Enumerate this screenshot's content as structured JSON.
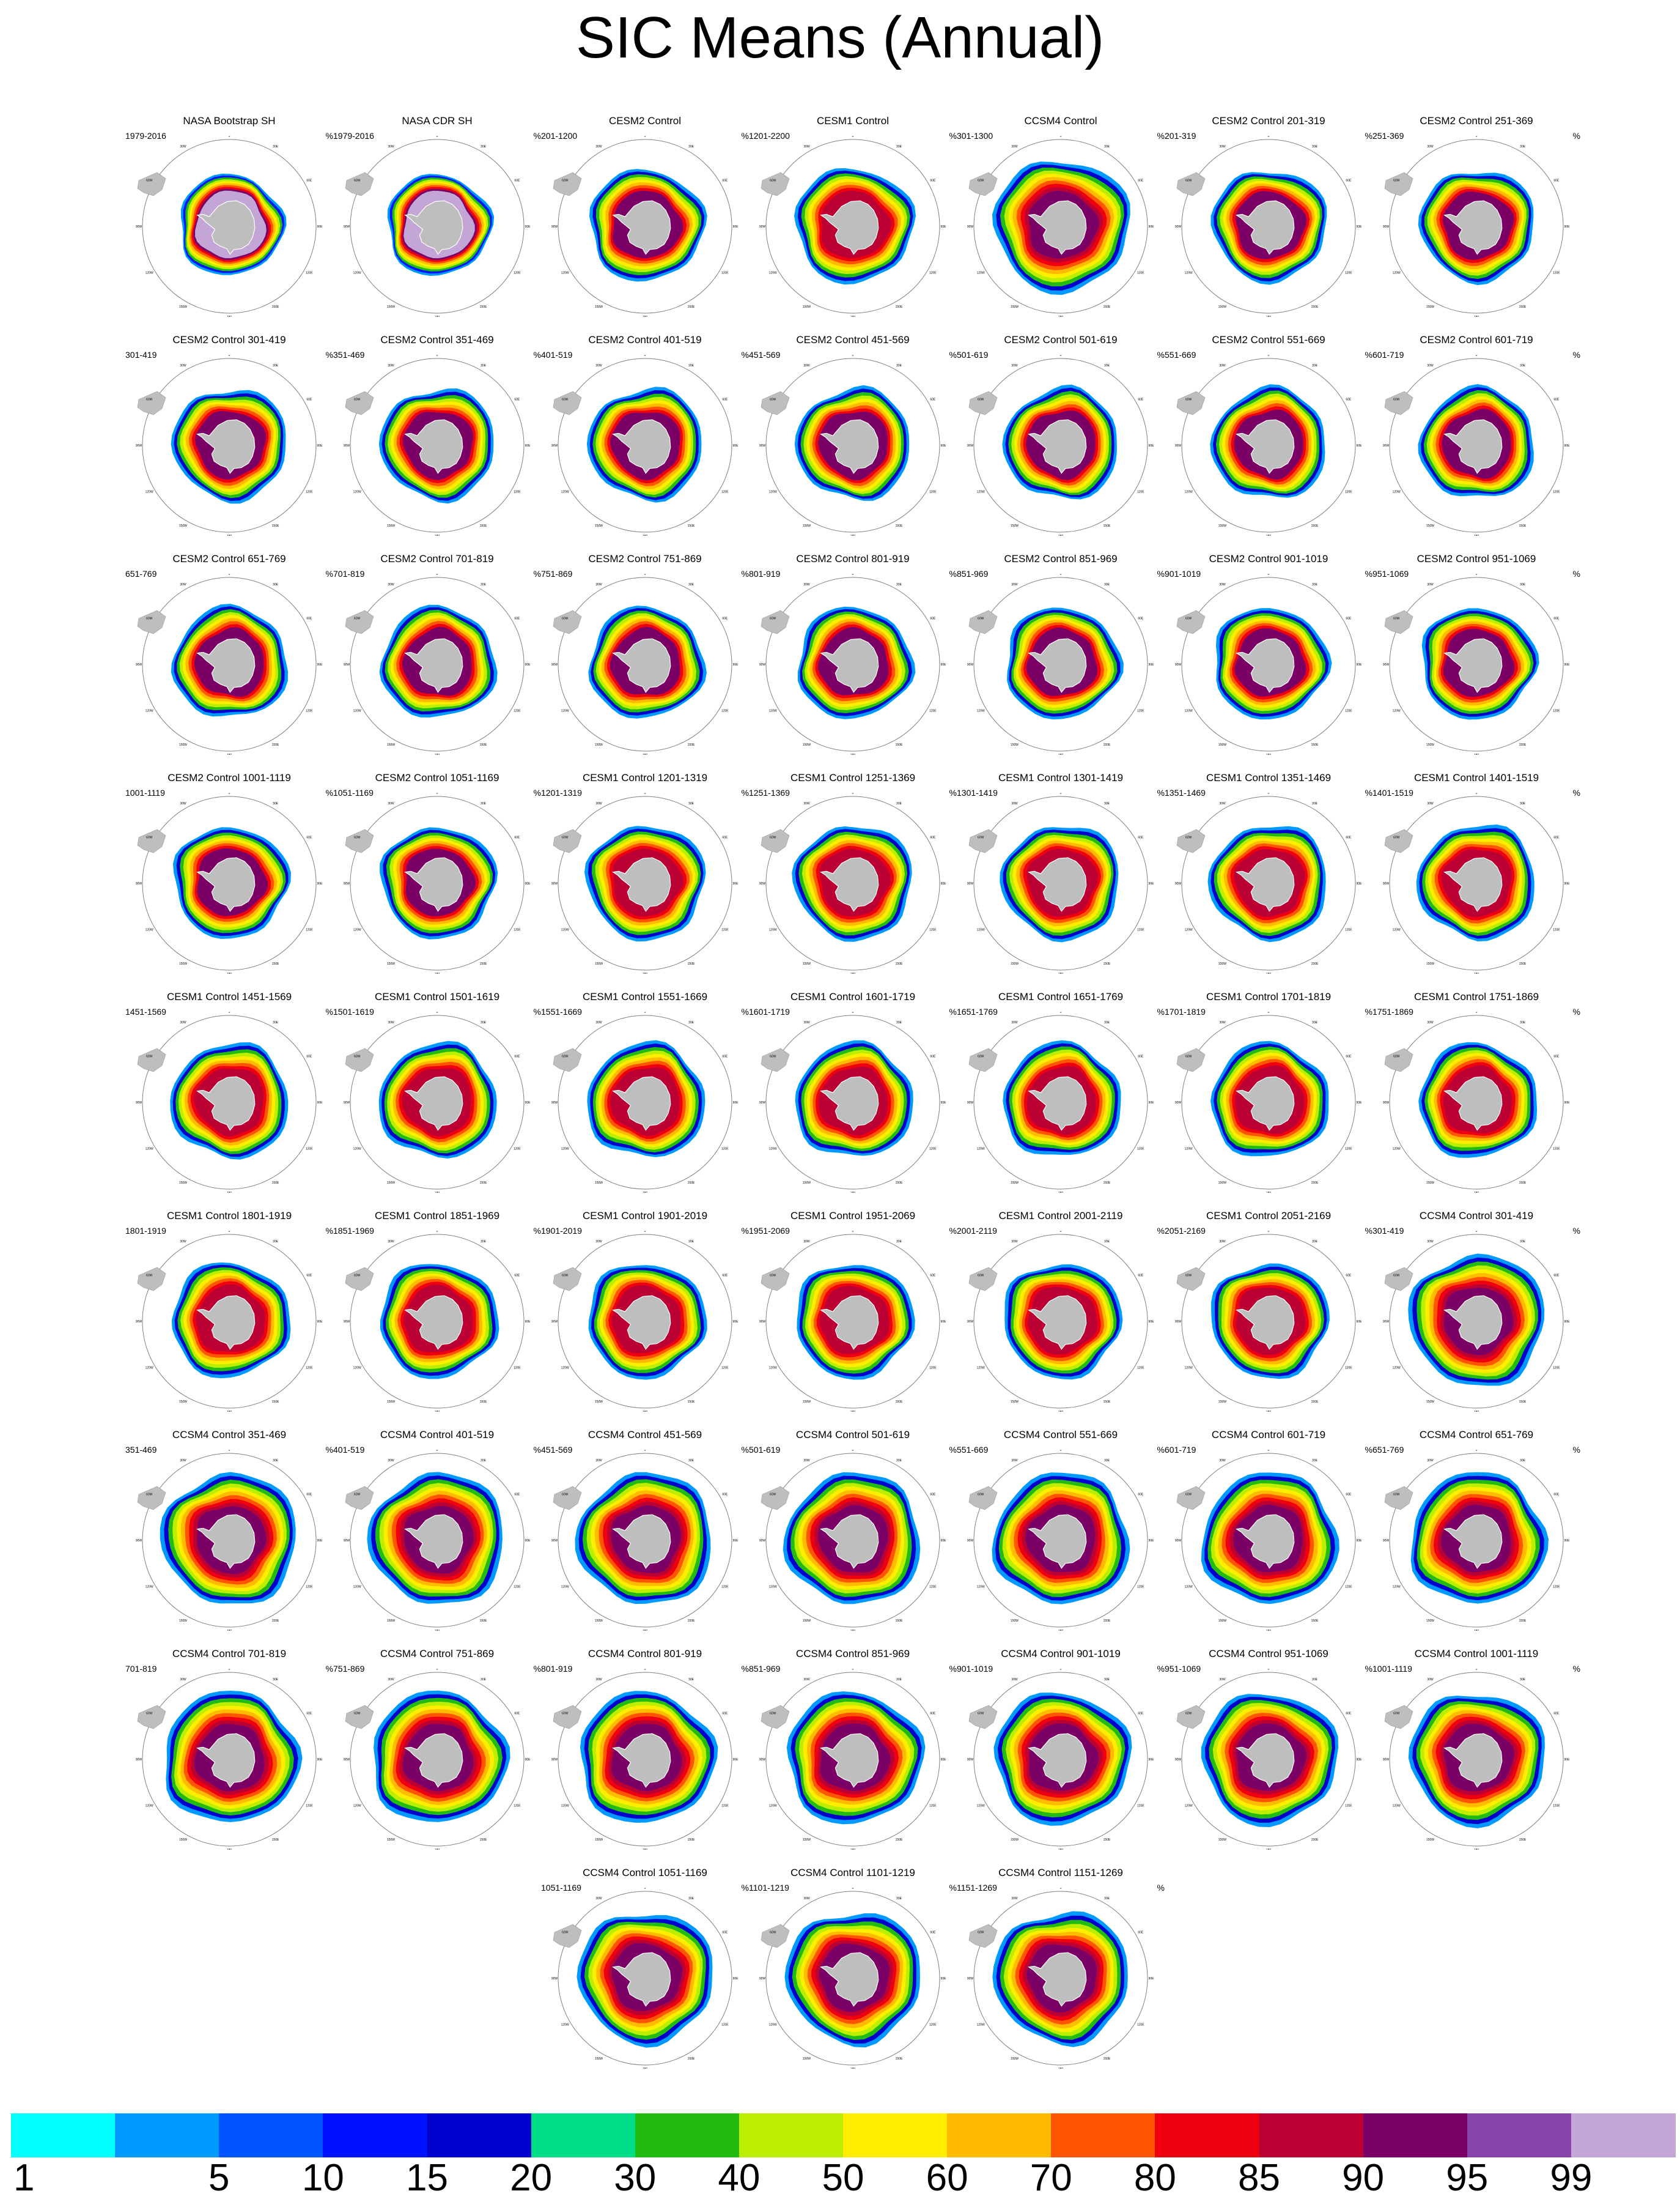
{
  "title": "SIC Means (Annual)",
  "units": "%",
  "map": {
    "projection": "south-polar-stereographic",
    "longitude_labels": [
      "0",
      "30E",
      "60E",
      "90E",
      "120E",
      "150E",
      "180",
      "150W",
      "120W",
      "90W",
      "60W",
      "30W"
    ],
    "colors": {
      "land": "#bebebe",
      "coastline": "#ffffff",
      "frame": "#808080"
    }
  },
  "panels": [
    {
      "title": "NASA Bootstrap SH",
      "years": "1979-2016",
      "dataset": "obs"
    },
    {
      "title": "NASA CDR SH",
      "years": "1979-2016",
      "dataset": "obs"
    },
    {
      "title": "CESM2 Control",
      "years": "201-1200",
      "dataset": "cesm2"
    },
    {
      "title": "CESM1 Control",
      "years": "1201-2200",
      "dataset": "cesm1"
    },
    {
      "title": "CCSM4 Control",
      "years": "301-1300",
      "dataset": "ccsm4"
    },
    {
      "title": "CESM2 Control 201-319",
      "years": "201-319",
      "dataset": "cesm2"
    },
    {
      "title": "CESM2 Control 251-369",
      "years": "251-369",
      "dataset": "cesm2"
    },
    {
      "title": "CESM2 Control 301-419",
      "years": "301-419",
      "dataset": "cesm2"
    },
    {
      "title": "CESM2 Control 351-469",
      "years": "351-469",
      "dataset": "cesm2"
    },
    {
      "title": "CESM2 Control 401-519",
      "years": "401-519",
      "dataset": "cesm2"
    },
    {
      "title": "CESM2 Control 451-569",
      "years": "451-569",
      "dataset": "cesm2"
    },
    {
      "title": "CESM2 Control 501-619",
      "years": "501-619",
      "dataset": "cesm2"
    },
    {
      "title": "CESM2 Control 551-669",
      "years": "551-669",
      "dataset": "cesm2"
    },
    {
      "title": "CESM2 Control 601-719",
      "years": "601-719",
      "dataset": "cesm2"
    },
    {
      "title": "CESM2 Control 651-769",
      "years": "651-769",
      "dataset": "cesm2"
    },
    {
      "title": "CESM2 Control 701-819",
      "years": "701-819",
      "dataset": "cesm2"
    },
    {
      "title": "CESM2 Control 751-869",
      "years": "751-869",
      "dataset": "cesm2"
    },
    {
      "title": "CESM2 Control 801-919",
      "years": "801-919",
      "dataset": "cesm2"
    },
    {
      "title": "CESM2 Control 851-969",
      "years": "851-969",
      "dataset": "cesm2"
    },
    {
      "title": "CESM2 Control 901-1019",
      "years": "901-1019",
      "dataset": "cesm2"
    },
    {
      "title": "CESM2 Control 951-1069",
      "years": "951-1069",
      "dataset": "cesm2"
    },
    {
      "title": "CESM2 Control 1001-1119",
      "years": "1001-1119",
      "dataset": "cesm2"
    },
    {
      "title": "CESM2 Control 1051-1169",
      "years": "1051-1169",
      "dataset": "cesm2"
    },
    {
      "title": "CESM1 Control 1201-1319",
      "years": "1201-1319",
      "dataset": "cesm1"
    },
    {
      "title": "CESM1 Control 1251-1369",
      "years": "1251-1369",
      "dataset": "cesm1"
    },
    {
      "title": "CESM1 Control 1301-1419",
      "years": "1301-1419",
      "dataset": "cesm1"
    },
    {
      "title": "CESM1 Control 1351-1469",
      "years": "1351-1469",
      "dataset": "cesm1"
    },
    {
      "title": "CESM1 Control 1401-1519",
      "years": "1401-1519",
      "dataset": "cesm1"
    },
    {
      "title": "CESM1 Control 1451-1569",
      "years": "1451-1569",
      "dataset": "cesm1"
    },
    {
      "title": "CESM1 Control 1501-1619",
      "years": "1501-1619",
      "dataset": "cesm1"
    },
    {
      "title": "CESM1 Control 1551-1669",
      "years": "1551-1669",
      "dataset": "cesm1"
    },
    {
      "title": "CESM1 Control 1601-1719",
      "years": "1601-1719",
      "dataset": "cesm1"
    },
    {
      "title": "CESM1 Control 1651-1769",
      "years": "1651-1769",
      "dataset": "cesm1"
    },
    {
      "title": "CESM1 Control 1701-1819",
      "years": "1701-1819",
      "dataset": "cesm1"
    },
    {
      "title": "CESM1 Control 1751-1869",
      "years": "1751-1869",
      "dataset": "cesm1"
    },
    {
      "title": "CESM1 Control 1801-1919",
      "years": "1801-1919",
      "dataset": "cesm1"
    },
    {
      "title": "CESM1 Control 1851-1969",
      "years": "1851-1969",
      "dataset": "cesm1"
    },
    {
      "title": "CESM1 Control 1901-2019",
      "years": "1901-2019",
      "dataset": "cesm1"
    },
    {
      "title": "CESM1 Control 1951-2069",
      "years": "1951-2069",
      "dataset": "cesm1"
    },
    {
      "title": "CESM1 Control 2001-2119",
      "years": "2001-2119",
      "dataset": "cesm1"
    },
    {
      "title": "CESM1 Control 2051-2169",
      "years": "2051-2169",
      "dataset": "cesm1"
    },
    {
      "title": "CCSM4 Control 301-419",
      "years": "301-419",
      "dataset": "ccsm4"
    },
    {
      "title": "CCSM4 Control 351-469",
      "years": "351-469",
      "dataset": "ccsm4"
    },
    {
      "title": "CCSM4 Control 401-519",
      "years": "401-519",
      "dataset": "ccsm4"
    },
    {
      "title": "CCSM4 Control 451-569",
      "years": "451-569",
      "dataset": "ccsm4"
    },
    {
      "title": "CCSM4 Control 501-619",
      "years": "501-619",
      "dataset": "ccsm4"
    },
    {
      "title": "CCSM4 Control 551-669",
      "years": "551-669",
      "dataset": "ccsm4"
    },
    {
      "title": "CCSM4 Control 601-719",
      "years": "601-719",
      "dataset": "ccsm4"
    },
    {
      "title": "CCSM4 Control 651-769",
      "years": "651-769",
      "dataset": "ccsm4"
    },
    {
      "title": "CCSM4 Control 701-819",
      "years": "701-819",
      "dataset": "ccsm4"
    },
    {
      "title": "CCSM4 Control 751-869",
      "years": "751-869",
      "dataset": "ccsm4"
    },
    {
      "title": "CCSM4 Control 801-919",
      "years": "801-919",
      "dataset": "ccsm4"
    },
    {
      "title": "CCSM4 Control 851-969",
      "years": "851-969",
      "dataset": "ccsm4"
    },
    {
      "title": "CCSM4 Control 901-1019",
      "years": "901-1019",
      "dataset": "ccsm4"
    },
    {
      "title": "CCSM4 Control 951-1069",
      "years": "951-1069",
      "dataset": "ccsm4"
    },
    {
      "title": "CCSM4 Control 1001-1119",
      "years": "1001-1119",
      "dataset": "ccsm4"
    },
    {
      "title": "CCSM4 Control 1051-1169",
      "years": "1051-1169",
      "dataset": "ccsm4"
    },
    {
      "title": "CCSM4 Control 1101-1219",
      "years": "1101-1219",
      "dataset": "ccsm4"
    },
    {
      "title": "CCSM4 Control 1151-1269",
      "years": "1151-1269",
      "dataset": "ccsm4"
    }
  ],
  "colorbar": {
    "labels": [
      "1",
      "5",
      "10",
      "15",
      "20",
      "30",
      "40",
      "50",
      "60",
      "70",
      "80",
      "85",
      "90",
      "95",
      "99"
    ],
    "colors": [
      "#00ffff",
      "#0099ff",
      "#0055ff",
      "#0011ff",
      "#0000cc",
      "#00dd88",
      "#22bb11",
      "#bbee00",
      "#ffee00",
      "#ffbb00",
      "#ff5500",
      "#ee0011",
      "#bb0033",
      "#7a0066",
      "#8844aa",
      "#c3a6d6"
    ]
  }
}
